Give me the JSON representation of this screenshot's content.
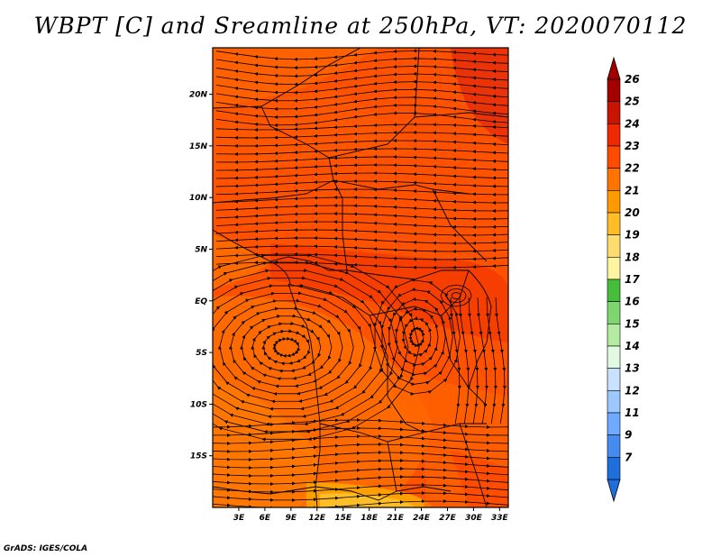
{
  "title": "WBPT [C] and Sreamline at 250hPa, VT: 2020070112",
  "credit": "GrADS: IGES/COLA",
  "map": {
    "lon_labels": [
      "3E",
      "6E",
      "9E",
      "12E",
      "15E",
      "18E",
      "21E",
      "24E",
      "27E",
      "30E",
      "33E"
    ],
    "lat_labels": [
      "20N",
      "15N",
      "10N",
      "5N",
      "EQ",
      "5S",
      "10S",
      "15S"
    ],
    "lon_range": [
      0,
      34
    ],
    "lat_range": [
      -20,
      24.5
    ],
    "field": "wet-bulb potential temperature",
    "overlay": "streamlines",
    "dominant_colors": [
      "#ff6a00",
      "#ff4800",
      "#ff2a00",
      "#ff9a00",
      "#ffc010"
    ],
    "features": [
      {
        "type": "cyclonic circulation",
        "label": "",
        "lon": 8.5,
        "lat": -4.5
      },
      {
        "type": "anticyclonic circulation",
        "label": "",
        "lon": 23.5,
        "lat": -3.5
      },
      {
        "type": "eddy",
        "label": "",
        "lon": 28,
        "lat": 0.5
      }
    ]
  },
  "colorbar": {
    "levels": [
      "26",
      "25",
      "24",
      "23",
      "22",
      "21",
      "20",
      "19",
      "18",
      "17",
      "16",
      "15",
      "14",
      "13",
      "12",
      "11",
      "9",
      "7"
    ],
    "colors": [
      "#a50000",
      "#c81400",
      "#f02800",
      "#ff4b00",
      "#ff7300",
      "#ff9b00",
      "#ffbe28",
      "#ffdc6e",
      "#fff5a0",
      "#46be3c",
      "#7ed76e",
      "#b4eba0",
      "#e1fae1",
      "#c8e1ff",
      "#9bc8ff",
      "#6eaaff",
      "#468cf0",
      "#1e6edc"
    ],
    "top_arrow_color": "#a50000",
    "bottom_arrow_color": "#1e6edc"
  }
}
